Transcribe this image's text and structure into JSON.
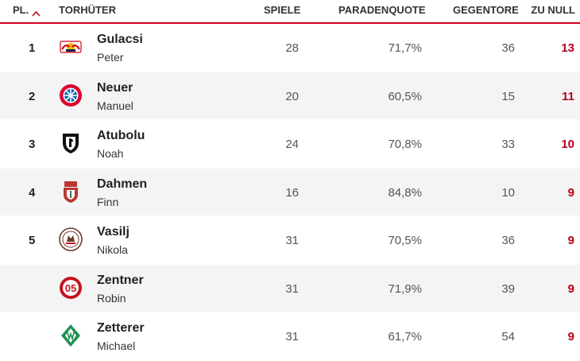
{
  "header": {
    "rank": "PL.",
    "keeper": "TORHÜTER",
    "games": "SPIELE",
    "save_rate": "PARADENQUOTE",
    "conceded": "GEGENTORE",
    "clean_sheets": "ZU NULL",
    "sort_icon": "caret-up-icon",
    "accent_color": "#d0021b"
  },
  "rows": [
    {
      "rank": "1",
      "last": "Gulacsi",
      "first": "Peter",
      "games": "28",
      "save": "71,7%",
      "conc": "36",
      "clean": "13",
      "logo": "rb-leipzig-logo"
    },
    {
      "rank": "2",
      "last": "Neuer",
      "first": "Manuel",
      "games": "20",
      "save": "60,5%",
      "conc": "15",
      "clean": "11",
      "logo": "bayern-logo"
    },
    {
      "rank": "3",
      "last": "Atubolu",
      "first": "Noah",
      "games": "24",
      "save": "70,8%",
      "conc": "33",
      "clean": "10",
      "logo": "freiburg-logo"
    },
    {
      "rank": "4",
      "last": "Dahmen",
      "first": "Finn",
      "games": "16",
      "save": "84,8%",
      "conc": "10",
      "clean": "9",
      "logo": "augsburg-logo"
    },
    {
      "rank": "5",
      "last": "Vasilj",
      "first": "Nikola",
      "games": "31",
      "save": "70,5%",
      "conc": "36",
      "clean": "9",
      "logo": "st-pauli-logo"
    },
    {
      "rank": "",
      "last": "Zentner",
      "first": "Robin",
      "games": "31",
      "save": "71,9%",
      "conc": "39",
      "clean": "9",
      "logo": "mainz-logo"
    },
    {
      "rank": "",
      "last": "Zetterer",
      "first": "Michael",
      "games": "31",
      "save": "61,7%",
      "conc": "54",
      "clean": "9",
      "logo": "werder-logo"
    }
  ]
}
